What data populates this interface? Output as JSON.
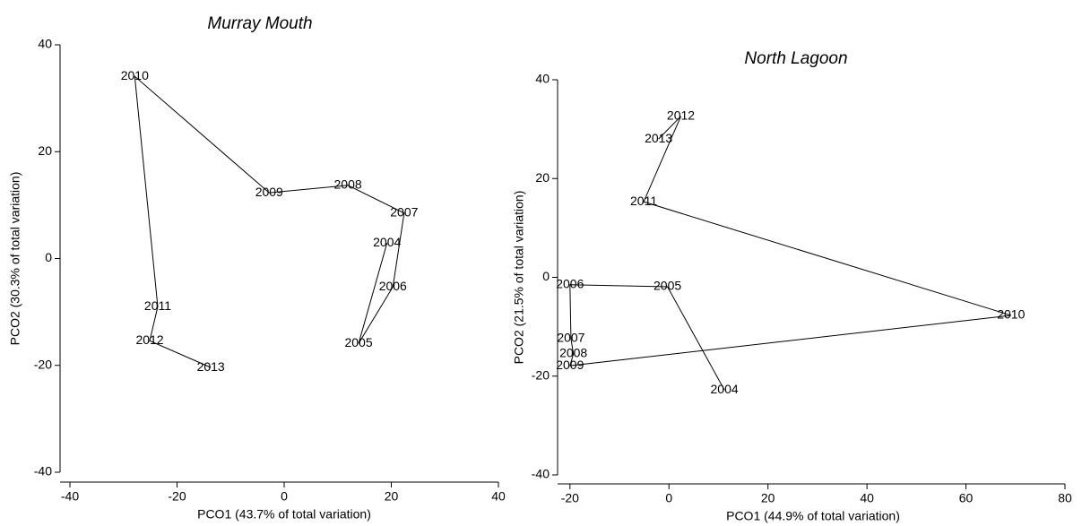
{
  "chart_data": [
    {
      "type": "line",
      "title": "Murray Mouth",
      "x_label": "PCO1 (43.7% of total variation)",
      "y_label": "PCO2 (30.3% of total variation)",
      "labels": [
        "2004",
        "2005",
        "2006",
        "2007",
        "2008",
        "2009",
        "2010",
        "2011",
        "2012",
        "2013"
      ],
      "x": [
        19.2,
        13.9,
        20.3,
        22.4,
        11.9,
        -2.8,
        -27.9,
        -23.6,
        -25.1,
        -13.7
      ],
      "values": [
        2.9,
        -15.9,
        -5.3,
        8.5,
        13.7,
        12.3,
        34.1,
        -9.0,
        -15.4,
        -20.4
      ],
      "color": "#000000",
      "xlim": [
        -40,
        40
      ],
      "xticks": [
        -40,
        -20,
        0,
        20,
        40
      ],
      "ylim": [
        -40,
        40
      ],
      "yticks": [
        -40,
        -20,
        0,
        20,
        40
      ]
    },
    {
      "type": "line",
      "title": "North Lagoon",
      "x_label": "PCO1 (44.9% of total variation)",
      "y_label": "PCO2 (21.5% of total variation)",
      "labels": [
        "2004",
        "2005",
        "2006",
        "2007",
        "2008",
        "2009",
        "2010",
        "2011",
        "2012",
        "2013"
      ],
      "x": [
        11.2,
        -0.3,
        -20,
        -19.8,
        -19.3,
        -20,
        69.1,
        -5.1,
        2.4,
        -2.1
      ],
      "values": [
        -22.8,
        -1.9,
        -1.5,
        -12.4,
        -15.5,
        -17.9,
        -7.7,
        15.3,
        32.6,
        28.0
      ],
      "color": "#000000",
      "xlim": [
        -22.5,
        80
      ],
      "xticks": [
        -20,
        0,
        20,
        40,
        60,
        80
      ],
      "ylim": [
        -40,
        40
      ],
      "yticks": [
        -40,
        -20,
        0,
        20,
        40
      ]
    }
  ]
}
